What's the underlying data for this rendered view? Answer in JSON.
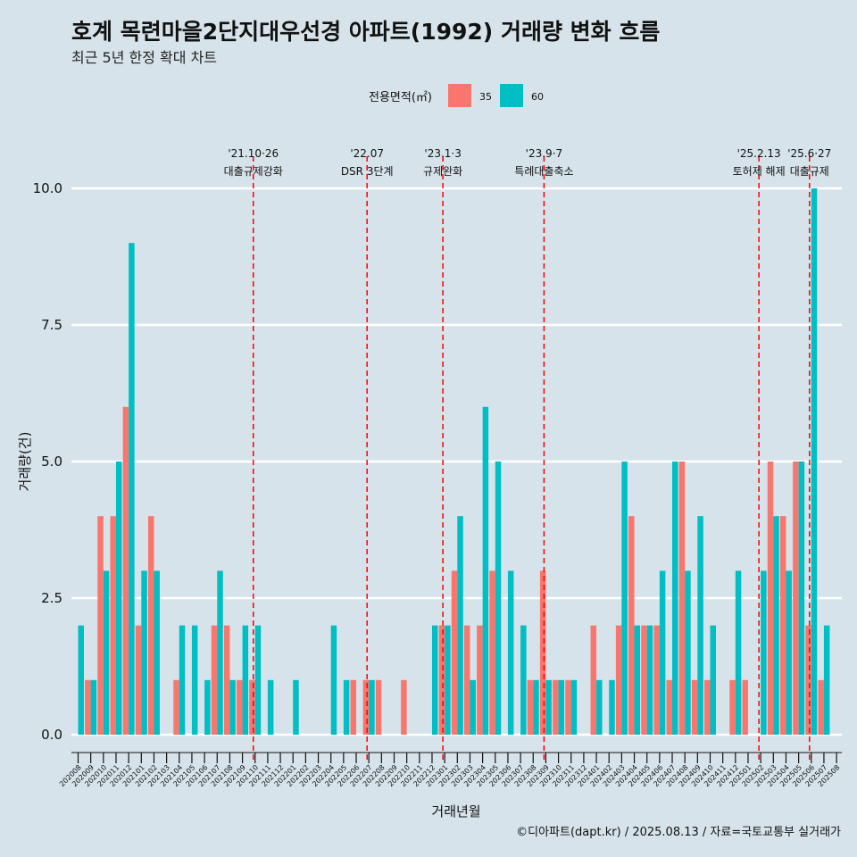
{
  "chart_data": {
    "type": "bar",
    "title": "호계 목련마을2단지대우선경 아파트(1992) 거래량 변화 흐름",
    "subtitle": "최근 5년 한정 확대 차트",
    "xlabel": "거래년월",
    "ylabel": "거래량(건)",
    "legend_title": "전용면적(㎡)",
    "legend_position": "top",
    "caption": "©디아파트(dapt.kr) / 2025.08.13 / 자료=국토교통부 실거래가",
    "ylim": [
      0,
      10
    ],
    "yticks": [
      0,
      2.5,
      5,
      7.5,
      10
    ],
    "ytick_labels": [
      "0.0",
      "2.5",
      "5.0",
      "7.5",
      "10.0"
    ],
    "categories": [
      "202008",
      "202009",
      "202010",
      "202011",
      "202012",
      "202101",
      "202102",
      "202103",
      "202104",
      "202105",
      "202106",
      "202107",
      "202108",
      "202109",
      "202110",
      "202111",
      "202112",
      "202201",
      "202202",
      "202203",
      "202204",
      "202205",
      "202206",
      "202207",
      "202208",
      "202209",
      "202210",
      "202211",
      "202212",
      "202301",
      "202302",
      "202303",
      "202304",
      "202305",
      "202306",
      "202307",
      "202308",
      "202309",
      "202310",
      "202311",
      "202312",
      "202401",
      "202402",
      "202403",
      "202404",
      "202405",
      "202406",
      "202407",
      "202408",
      "202409",
      "202410",
      "202411",
      "202412",
      "202501",
      "202502",
      "202503",
      "202504",
      "202505",
      "202506",
      "202507",
      "202508"
    ],
    "series": [
      {
        "name": "35",
        "color": "#f8766d",
        "values": [
          0,
          1,
          4,
          4,
          6,
          2,
          4,
          0,
          1,
          0,
          0,
          2,
          2,
          1,
          1,
          0,
          0,
          0,
          0,
          0,
          0,
          0,
          1,
          1,
          1,
          0,
          1,
          0,
          0,
          2,
          3,
          2,
          2,
          3,
          0,
          0,
          1,
          3,
          1,
          1,
          0,
          2,
          0,
          2,
          4,
          2,
          2,
          1,
          5,
          1,
          1,
          0,
          1,
          1,
          0,
          5,
          4,
          5,
          2,
          1,
          0
        ]
      },
      {
        "name": "60",
        "color": "#00bfc4",
        "values": [
          2,
          1,
          3,
          5,
          9,
          3,
          3,
          0,
          2,
          2,
          1,
          3,
          1,
          2,
          2,
          1,
          0,
          1,
          0,
          0,
          2,
          1,
          0,
          1,
          0,
          0,
          0,
          0,
          2,
          2,
          4,
          1,
          6,
          5,
          3,
          2,
          1,
          1,
          1,
          1,
          0,
          1,
          1,
          5,
          2,
          2,
          3,
          5,
          3,
          4,
          2,
          0,
          3,
          0,
          3,
          4,
          3,
          5,
          10,
          2,
          0
        ]
      }
    ],
    "events": [
      {
        "date": "'21.10·26",
        "label": "대출규제강화",
        "month": "202110"
      },
      {
        "date": "'22.07",
        "label": "DSR 3단계",
        "month": "202207"
      },
      {
        "date": "'23.1·3",
        "label": "규제완화",
        "month": "202301"
      },
      {
        "date": "'23.9·7",
        "label": "특례대출축소",
        "month": "202309"
      },
      {
        "date": "'25.2.13",
        "label": "토허제 해제",
        "month": "202502"
      },
      {
        "date": "'25.6·27",
        "label": "대출규제",
        "month": "202506"
      }
    ]
  }
}
